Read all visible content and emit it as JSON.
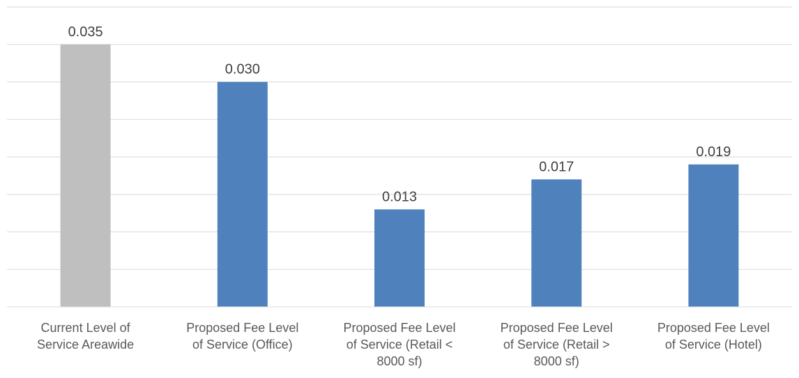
{
  "chart_data": {
    "type": "bar",
    "title": "",
    "xlabel": "",
    "ylabel": "",
    "ylim": [
      0,
      0.04
    ],
    "grid": true,
    "legend": "none",
    "categories": [
      [
        "Current Level of",
        "Service Areawide"
      ],
      [
        "Proposed Fee Level",
        "of Service (Office)"
      ],
      [
        "Proposed Fee Level",
        "of Service (Retail <",
        "8000 sf)"
      ],
      [
        "Proposed Fee Level",
        "of Service (Retail >",
        "8000 sf)"
      ],
      [
        "Proposed Fee Level",
        "of Service (Hotel)"
      ]
    ],
    "values": [
      0.035,
      0.03,
      0.013,
      0.017,
      0.019
    ],
    "data_labels": [
      "0.035",
      "0.030",
      "0.013",
      "0.017",
      "0.019"
    ],
    "colors": [
      "#bfbfbf",
      "#4f81bd",
      "#4f81bd",
      "#4f81bd",
      "#4f81bd"
    ],
    "gridline_step": 0.005
  }
}
